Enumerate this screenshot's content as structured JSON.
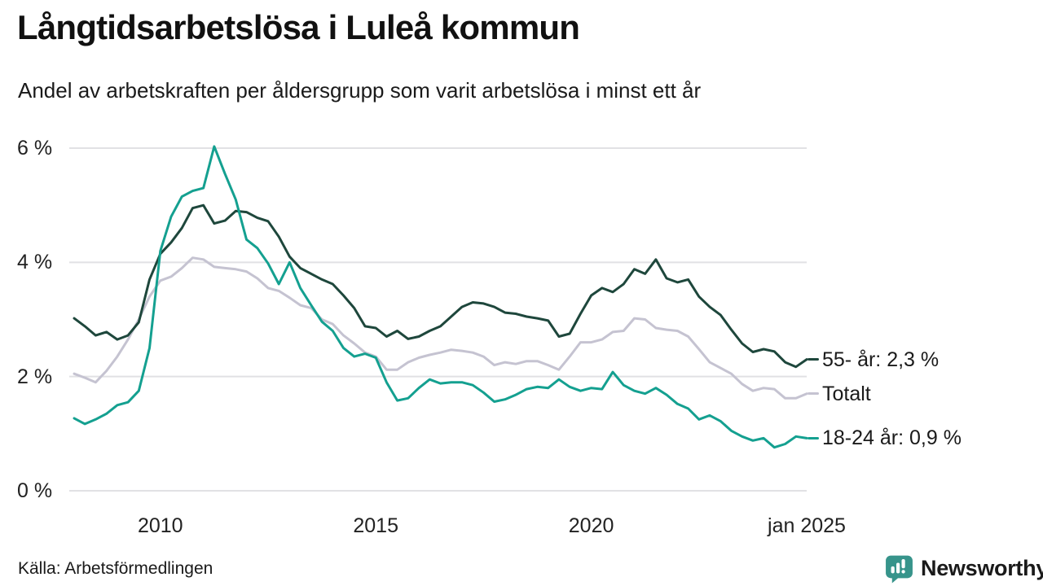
{
  "title": "Långtidsarbetslösa i Luleå kommun",
  "subtitle": "Andel av arbetskraften per åldersgrupp som varit arbetslösa i minst ett år",
  "source": "Källa: Arbetsförmedlingen",
  "branding": {
    "name": "Newsworthy",
    "color": "#37948b",
    "icon": "newsworthy-barchart-bubble-icon"
  },
  "colors": {
    "grid": "#e1e1e4",
    "text": "#1a1a1a",
    "series_55": "#1e473c",
    "series_total": "#c5c3d1",
    "series_18_24": "#14a090"
  },
  "chart_data": {
    "type": "line",
    "title": "Långtidsarbetslösa i Luleå kommun",
    "subtitle": "Andel av arbetskraften per åldersgrupp som varit arbetslösa i minst ett år",
    "xlabel": "",
    "ylabel": "",
    "xlim": [
      2008,
      2025
    ],
    "ylim": [
      0,
      6
    ],
    "grid": "horizontal",
    "legend_position": "right-end-labels",
    "yticks": [
      {
        "value": 6,
        "label": "6 %"
      },
      {
        "value": 4,
        "label": "4 %"
      },
      {
        "value": 2,
        "label": "2 %"
      },
      {
        "value": 0,
        "label": "0 %"
      }
    ],
    "xticks": [
      {
        "value": 2010,
        "label": "2010"
      },
      {
        "value": 2015,
        "label": "2015"
      },
      {
        "value": 2020,
        "label": "2020"
      },
      {
        "value": 2025,
        "label": "jan 2025"
      }
    ],
    "x": [
      2008,
      2008.25,
      2008.5,
      2008.75,
      2009,
      2009.25,
      2009.5,
      2009.75,
      2010,
      2010.25,
      2010.5,
      2010.75,
      2011,
      2011.25,
      2011.5,
      2011.75,
      2012,
      2012.25,
      2012.5,
      2012.75,
      2013,
      2013.25,
      2013.5,
      2013.75,
      2014,
      2014.25,
      2014.5,
      2014.75,
      2015,
      2015.25,
      2015.5,
      2015.75,
      2016,
      2016.25,
      2016.5,
      2016.75,
      2017,
      2017.25,
      2017.5,
      2017.75,
      2018,
      2018.25,
      2018.5,
      2018.75,
      2019,
      2019.25,
      2019.5,
      2019.75,
      2020,
      2020.25,
      2020.5,
      2020.75,
      2021,
      2021.25,
      2021.5,
      2021.75,
      2022,
      2022.25,
      2022.5,
      2022.75,
      2023,
      2023.25,
      2023.5,
      2023.75,
      2024,
      2024.25,
      2024.5,
      2024.75,
      2025
    ],
    "series": [
      {
        "name": "55- år",
        "end_label": "55- år: 2,3 %",
        "end_value": "2,3 %",
        "color": "#1e473c",
        "draw_order": 2,
        "values": [
          3.02,
          2.88,
          2.72,
          2.78,
          2.65,
          2.72,
          2.95,
          3.7,
          4.15,
          4.35,
          4.6,
          4.95,
          5.0,
          4.68,
          4.73,
          4.9,
          4.88,
          4.78,
          4.72,
          4.45,
          4.1,
          3.9,
          3.8,
          3.7,
          3.62,
          3.42,
          3.2,
          2.88,
          2.85,
          2.7,
          2.8,
          2.66,
          2.7,
          2.8,
          2.88,
          3.05,
          3.22,
          3.3,
          3.28,
          3.22,
          3.12,
          3.1,
          3.05,
          3.02,
          2.98,
          2.7,
          2.75,
          3.1,
          3.42,
          3.55,
          3.48,
          3.62,
          3.88,
          3.8,
          4.05,
          3.72,
          3.65,
          3.7,
          3.4,
          3.22,
          3.08,
          2.82,
          2.58,
          2.43,
          2.48,
          2.44,
          2.25,
          2.17,
          2.3
        ]
      },
      {
        "name": "Totalt",
        "end_label": "Totalt",
        "end_value": "",
        "color": "#c5c3d1",
        "draw_order": 1,
        "values": [
          2.05,
          1.98,
          1.9,
          2.1,
          2.35,
          2.65,
          3.0,
          3.4,
          3.68,
          3.75,
          3.9,
          4.08,
          4.05,
          3.92,
          3.9,
          3.88,
          3.84,
          3.72,
          3.55,
          3.5,
          3.38,
          3.25,
          3.2,
          3.0,
          2.92,
          2.72,
          2.58,
          2.42,
          2.35,
          2.12,
          2.12,
          2.25,
          2.33,
          2.38,
          2.42,
          2.47,
          2.45,
          2.42,
          2.35,
          2.2,
          2.25,
          2.22,
          2.27,
          2.27,
          2.2,
          2.12,
          2.35,
          2.6,
          2.6,
          2.65,
          2.78,
          2.8,
          3.02,
          3.0,
          2.85,
          2.82,
          2.8,
          2.7,
          2.48,
          2.25,
          2.15,
          2.05,
          1.87,
          1.75,
          1.8,
          1.78,
          1.62,
          1.62,
          1.7
        ]
      },
      {
        "name": "18-24 år",
        "end_label": "18-24 år: 0,9 %",
        "end_value": "0,9 %",
        "color": "#14a090",
        "draw_order": 3,
        "values": [
          1.27,
          1.17,
          1.25,
          1.35,
          1.5,
          1.55,
          1.75,
          2.5,
          4.2,
          4.8,
          5.15,
          5.25,
          5.3,
          6.03,
          5.55,
          5.1,
          4.4,
          4.25,
          3.98,
          3.62,
          4.0,
          3.55,
          3.25,
          2.96,
          2.8,
          2.5,
          2.35,
          2.4,
          2.33,
          1.9,
          1.58,
          1.62,
          1.8,
          1.95,
          1.88,
          1.9,
          1.9,
          1.85,
          1.72,
          1.56,
          1.6,
          1.68,
          1.78,
          1.82,
          1.8,
          1.95,
          1.82,
          1.75,
          1.8,
          1.78,
          2.08,
          1.85,
          1.75,
          1.7,
          1.8,
          1.68,
          1.52,
          1.44,
          1.25,
          1.32,
          1.22,
          1.05,
          0.95,
          0.88,
          0.92,
          0.76,
          0.82,
          0.95,
          0.92
        ]
      }
    ]
  }
}
